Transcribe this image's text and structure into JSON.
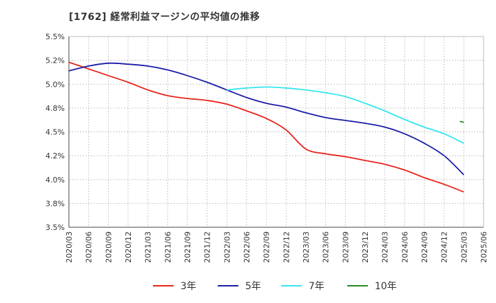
{
  "title": "[1762]  経常利益マージンの平均値の推移",
  "chart_data": {
    "type": "line",
    "title": "[1762]  経常利益マージンの平均値の推移",
    "xlabel": "",
    "ylabel": "",
    "ylim": [
      3.5,
      5.5
    ],
    "yticks": [
      "5.5%",
      "5.2%",
      "5.0%",
      "4.8%",
      "4.5%",
      "4.2%",
      "4.0%",
      "3.8%",
      "3.5%"
    ],
    "ytick_values": [
      5.5,
      5.25,
      5.0,
      4.75,
      4.5,
      4.25,
      4.0,
      3.75,
      3.5
    ],
    "x": [
      "2020/03",
      "2020/06",
      "2020/09",
      "2020/12",
      "2021/03",
      "2021/06",
      "2021/09",
      "2021/12",
      "2022/03",
      "2022/06",
      "2022/09",
      "2022/12",
      "2023/03",
      "2023/06",
      "2023/09",
      "2023/12",
      "2024/03",
      "2024/06",
      "2024/09",
      "2024/12",
      "2025/03",
      "2025/06"
    ],
    "grid": true,
    "legend_position": "bottom",
    "series": [
      {
        "name": "3年",
        "color": "#e8221c",
        "values": [
          5.23,
          5.16,
          5.09,
          5.02,
          4.94,
          4.88,
          4.85,
          4.83,
          4.79,
          4.72,
          4.64,
          4.52,
          4.32,
          4.27,
          4.24,
          4.2,
          4.16,
          4.1,
          4.02,
          3.95,
          3.87,
          null
        ]
      },
      {
        "name": "5年",
        "color": "#1a1aaa",
        "values": [
          5.14,
          5.19,
          5.22,
          5.21,
          5.19,
          5.15,
          5.09,
          5.02,
          4.94,
          4.86,
          4.8,
          4.76,
          4.7,
          4.65,
          4.62,
          4.59,
          4.55,
          4.48,
          4.38,
          4.25,
          4.05,
          null
        ]
      },
      {
        "name": "7年",
        "color": "#33e6f0",
        "values": [
          null,
          null,
          null,
          null,
          null,
          null,
          null,
          null,
          4.94,
          4.96,
          4.97,
          4.96,
          4.94,
          4.91,
          4.87,
          4.8,
          4.72,
          4.63,
          4.55,
          4.48,
          4.38,
          null
        ]
      },
      {
        "name": "10年",
        "color": "#228b22",
        "values": [
          null,
          null,
          null,
          null,
          null,
          null,
          null,
          null,
          null,
          null,
          null,
          null,
          null,
          null,
          null,
          null,
          null,
          null,
          null,
          null,
          4.6,
          null
        ],
        "segment": [
          [
            19.8,
            4.61
          ],
          [
            20.0,
            4.6
          ]
        ]
      }
    ]
  }
}
